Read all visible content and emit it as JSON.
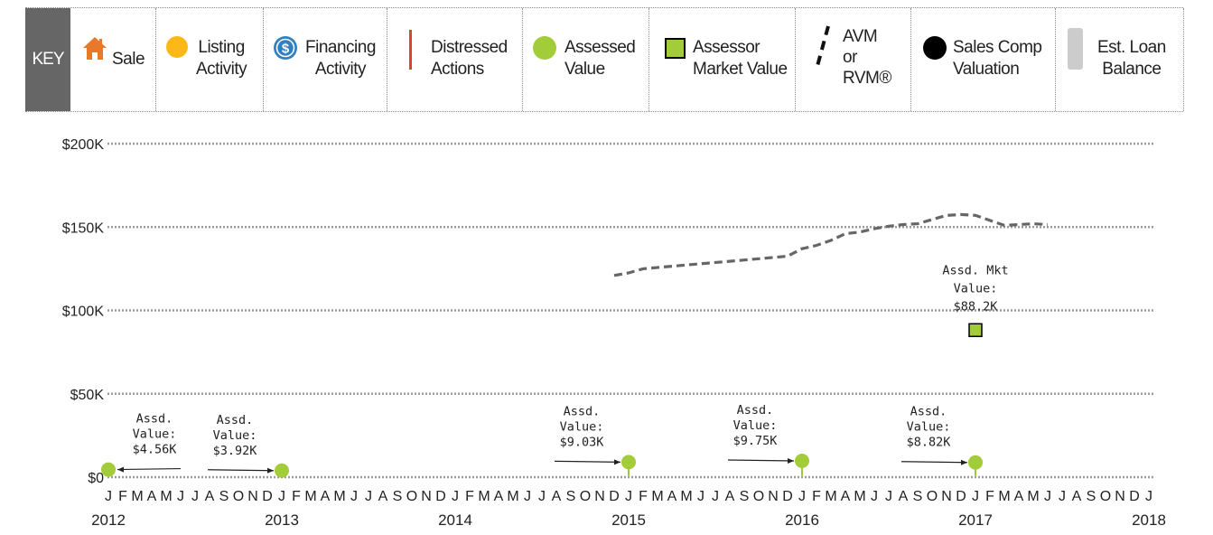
{
  "legend": {
    "key_label": "KEY",
    "items": [
      {
        "id": "sale",
        "label": [
          "Sale"
        ],
        "icon": "house-icon",
        "color": "#e8792a"
      },
      {
        "id": "listing",
        "label": [
          "Listing",
          "Activity"
        ],
        "icon": "circle-icon",
        "color": "#fbb817"
      },
      {
        "id": "financing",
        "label": [
          "Financing",
          "Activity"
        ],
        "icon": "dollar-icon",
        "color": "#2f7fc1"
      },
      {
        "id": "distressed",
        "label": [
          "Distressed",
          "Actions"
        ],
        "icon": "red-bar-icon",
        "color": "#d9442b"
      },
      {
        "id": "assessed",
        "label": [
          "Assessed",
          "Value"
        ],
        "icon": "circle-icon",
        "color": "#a3cc3a"
      },
      {
        "id": "assessor_mkt",
        "label": [
          "Assessor",
          "Market Value"
        ],
        "icon": "square-icon",
        "color": "#a3cc3a"
      },
      {
        "id": "avm",
        "label": [
          "AVM",
          "or",
          "RVM®"
        ],
        "icon": "dashed-line-icon",
        "color": "#222222"
      },
      {
        "id": "sales_comp",
        "label": [
          "Sales Comp",
          "Valuation"
        ],
        "icon": "black-circle-icon",
        "color": "#000000"
      },
      {
        "id": "loan",
        "label": [
          "Est. Loan",
          "Balance"
        ],
        "icon": "gray-bar-icon",
        "color": "#cccccc"
      }
    ]
  },
  "chart_data": {
    "type": "line",
    "y_ticks": [
      "$0",
      "$50K",
      "$100K",
      "$150K",
      "$200K"
    ],
    "y_tick_values": [
      0,
      50000,
      100000,
      150000,
      200000
    ],
    "ylim": [
      0,
      200000
    ],
    "x_start": "2012-01",
    "x_end": "2018-01",
    "month_letters": [
      "J",
      "F",
      "M",
      "A",
      "M",
      "J",
      "J",
      "A",
      "S",
      "O",
      "N",
      "D"
    ],
    "year_labels": [
      "2012",
      "2013",
      "2014",
      "2015",
      "2016",
      "2017",
      "2018"
    ],
    "grid": true,
    "avm_series": {
      "name": "AVM or RVM®",
      "color": "#666666",
      "points": [
        {
          "x": "2014-12",
          "y": 121000
        },
        {
          "x": "2015-01",
          "y": 122500
        },
        {
          "x": "2015-02",
          "y": 125000
        },
        {
          "x": "2015-04",
          "y": 126500
        },
        {
          "x": "2015-06",
          "y": 128000
        },
        {
          "x": "2015-08",
          "y": 129500
        },
        {
          "x": "2015-10",
          "y": 131000
        },
        {
          "x": "2015-12",
          "y": 132500
        },
        {
          "x": "2016-01",
          "y": 137000
        },
        {
          "x": "2016-02",
          "y": 139000
        },
        {
          "x": "2016-03",
          "y": 142000
        },
        {
          "x": "2016-04",
          "y": 146000
        },
        {
          "x": "2016-05",
          "y": 147000
        },
        {
          "x": "2016-06",
          "y": 149000
        },
        {
          "x": "2016-07",
          "y": 150500
        },
        {
          "x": "2016-08",
          "y": 151500
        },
        {
          "x": "2016-09",
          "y": 152000
        },
        {
          "x": "2016-10",
          "y": 154500
        },
        {
          "x": "2016-11",
          "y": 157000
        },
        {
          "x": "2016-12",
          "y": 157500
        },
        {
          "x": "2017-01",
          "y": 157000
        },
        {
          "x": "2017-02",
          "y": 154000
        },
        {
          "x": "2017-03",
          "y": 151000
        },
        {
          "x": "2017-04",
          "y": 151500
        },
        {
          "x": "2017-05",
          "y": 152000
        },
        {
          "x": "2017-06",
          "y": 151500
        }
      ]
    },
    "assessed_values": [
      {
        "x": "2012-01",
        "y": 4560,
        "label": [
          "Assd.",
          "Value:",
          "$4.56K"
        ],
        "label_side": "right"
      },
      {
        "x": "2013-01",
        "y": 3920,
        "label": [
          "Assd.",
          "Value:",
          "$3.92K"
        ],
        "label_side": "left"
      },
      {
        "x": "2015-01",
        "y": 9030,
        "label": [
          "Assd.",
          "Value:",
          "$9.03K"
        ],
        "label_side": "left"
      },
      {
        "x": "2016-01",
        "y": 9750,
        "label": [
          "Assd.",
          "Value:",
          "$9.75K"
        ],
        "label_side": "left"
      },
      {
        "x": "2017-01",
        "y": 8820,
        "label": [
          "Assd.",
          "Value:",
          "$8.82K"
        ],
        "label_side": "left"
      }
    ],
    "assessor_market_value": {
      "x": "2017-01",
      "y": 88200,
      "label": [
        "Assd. Mkt",
        "Value:",
        "$88.2K"
      ]
    }
  }
}
